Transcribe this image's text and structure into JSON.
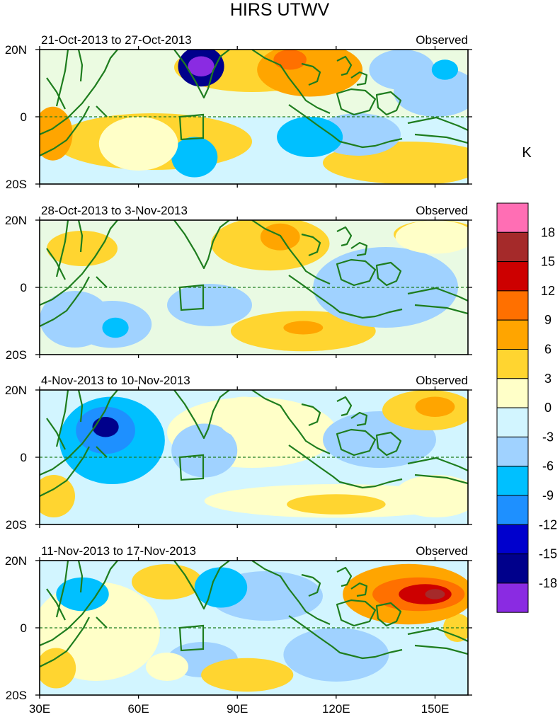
{
  "title": "HIRS UTWV",
  "unit": "K",
  "panels": [
    {
      "date_range": "21-Oct-2013 to 27-Oct-2013",
      "label": "Observed",
      "blobs": [
        {
          "lon": 79,
          "lat": 15,
          "rlon": 7,
          "rlat": 6,
          "level": -15
        },
        {
          "lon": 79,
          "lat": 15,
          "rlon": 4,
          "rlat": 3,
          "level": -18
        },
        {
          "lon": 112,
          "lat": 14,
          "rlon": 16,
          "rlat": 8,
          "level": 9
        },
        {
          "lon": 106,
          "lat": 17,
          "rlon": 5,
          "rlat": 3,
          "level": 12
        },
        {
          "lon": 77,
          "lat": -12,
          "rlon": 7,
          "rlat": 6,
          "level": -6
        },
        {
          "lon": 112,
          "lat": -6,
          "rlon": 10,
          "rlat": 6,
          "level": -6
        },
        {
          "lon": 34,
          "lat": -5,
          "rlon": 6,
          "rlat": 8,
          "level": 9
        },
        {
          "lon": 148,
          "lat": -14,
          "rlon": 16,
          "rlat": 6,
          "level": 6
        },
        {
          "lon": 60,
          "lat": -8,
          "rlon": 12,
          "rlat": 8,
          "level": 3
        },
        {
          "lon": 140,
          "lat": 14,
          "rlon": 10,
          "rlat": 6,
          "level": -3
        },
        {
          "lon": 153,
          "lat": 14,
          "rlon": 4,
          "rlat": 3,
          "level": -6
        }
      ]
    },
    {
      "date_range": "28-Oct-2013 to 3-Nov-2013",
      "label": "Observed",
      "blobs": [
        {
          "lon": 100,
          "lat": 13,
          "rlon": 18,
          "rlat": 8,
          "level": 6
        },
        {
          "lon": 103,
          "lat": 15,
          "rlon": 6,
          "rlat": 4,
          "level": 9
        },
        {
          "lon": 110,
          "lat": -13,
          "rlon": 22,
          "rlat": 6,
          "level": 6
        },
        {
          "lon": 110,
          "lat": -12,
          "rlon": 6,
          "rlat": 2,
          "level": 9
        },
        {
          "lon": 135,
          "lat": 0,
          "rlon": 22,
          "rlat": 12,
          "level": -3
        },
        {
          "lon": 52,
          "lat": -11,
          "rlon": 12,
          "rlat": 7,
          "level": -3
        },
        {
          "lon": 53,
          "lat": -12,
          "rlon": 4,
          "rlat": 3,
          "level": -6
        },
        {
          "lon": 150,
          "lat": 15,
          "rlon": 12,
          "rlat": 5,
          "level": 3
        }
      ]
    },
    {
      "date_range": "4-Nov-2013 to 10-Nov-2013",
      "label": "Observed",
      "blobs": [
        {
          "lon": 52,
          "lat": 5,
          "rlon": 16,
          "rlat": 13,
          "level": -6
        },
        {
          "lon": 50,
          "lat": 8,
          "rlon": 9,
          "rlat": 7,
          "level": -9
        },
        {
          "lon": 50,
          "lat": 9,
          "rlon": 4,
          "rlat": 3,
          "level": -15
        },
        {
          "lon": 120,
          "lat": -13,
          "rlon": 40,
          "rlat": 5,
          "level": 3
        },
        {
          "lon": 120,
          "lat": -14,
          "rlon": 15,
          "rlat": 3,
          "level": 6
        },
        {
          "lon": 148,
          "lat": 14,
          "rlon": 14,
          "rlat": 6,
          "level": 6
        },
        {
          "lon": 150,
          "lat": 15,
          "rlon": 6,
          "rlat": 3,
          "level": 9
        },
        {
          "lon": 80,
          "lat": 2,
          "rlon": 10,
          "rlat": 8,
          "level": -3
        },
        {
          "lon": 92,
          "lat": 12,
          "rlon": 8,
          "rlat": 6,
          "level": 3
        }
      ]
    },
    {
      "date_range": "11-Nov-2013 to 17-Nov-2013",
      "label": "Observed",
      "blobs": [
        {
          "lon": 142,
          "lat": 10,
          "rlon": 20,
          "rlat": 9,
          "level": 9
        },
        {
          "lon": 145,
          "lat": 10,
          "rlon": 14,
          "rlat": 5,
          "level": 12
        },
        {
          "lon": 147,
          "lat": 10,
          "rlon": 8,
          "rlat": 3,
          "level": 15
        },
        {
          "lon": 150,
          "lat": 10,
          "rlon": 3,
          "rlat": 1.5,
          "level": 18
        },
        {
          "lon": 43,
          "lat": 10,
          "rlon": 8,
          "rlat": 5,
          "level": -6
        },
        {
          "lon": 85,
          "lat": 12,
          "rlon": 8,
          "rlat": 6,
          "level": -6
        },
        {
          "lon": 93,
          "lat": -14,
          "rlon": 14,
          "rlat": 5,
          "level": 6
        },
        {
          "lon": 120,
          "lat": -8,
          "rlon": 16,
          "rlat": 8,
          "level": -3
        },
        {
          "lon": 35,
          "lat": -12,
          "rlon": 6,
          "rlat": 6,
          "level": 6
        }
      ]
    }
  ],
  "axes": {
    "y_ticks": [
      {
        "lat": 20,
        "label": "20N"
      },
      {
        "lat": 0,
        "label": "0"
      },
      {
        "lat": -20,
        "label": "20S"
      }
    ],
    "x_ticks": [
      {
        "lon": 30,
        "label": "30E"
      },
      {
        "lon": 60,
        "label": "60E"
      },
      {
        "lon": 90,
        "label": "90E"
      },
      {
        "lon": 120,
        "label": "120E"
      },
      {
        "lon": 150,
        "label": "150E"
      }
    ],
    "lon_range": [
      30,
      160
    ],
    "lat_range": [
      -20,
      20
    ]
  },
  "colorbar": {
    "labels": [
      "18",
      "15",
      "12",
      "9",
      "6",
      "3",
      "0",
      "-3",
      "-6",
      "-9",
      "-12",
      "-15",
      "-18"
    ],
    "bins": [
      {
        "level": 21,
        "color": "#ff6eb4"
      },
      {
        "level": 18,
        "color": "#a52a2a"
      },
      {
        "level": 15,
        "color": "#cd0000"
      },
      {
        "level": 12,
        "color": "#ff7000"
      },
      {
        "level": 9,
        "color": "#ffa500"
      },
      {
        "level": 6,
        "color": "#ffd530"
      },
      {
        "level": 3,
        "color": "#ffffc8"
      },
      {
        "level": 0,
        "color": "#d2f5ff"
      },
      {
        "level": -3,
        "color": "#a0d2ff"
      },
      {
        "level": -6,
        "color": "#00c0ff"
      },
      {
        "level": -9,
        "color": "#1e90ff"
      },
      {
        "level": -12,
        "color": "#0000cd"
      },
      {
        "level": -15,
        "color": "#00008b"
      },
      {
        "level": -18,
        "color": "#8a2be2"
      }
    ]
  },
  "colors": {
    "coastline": "#1e7d1e",
    "background_field": "#d2f5ff"
  }
}
